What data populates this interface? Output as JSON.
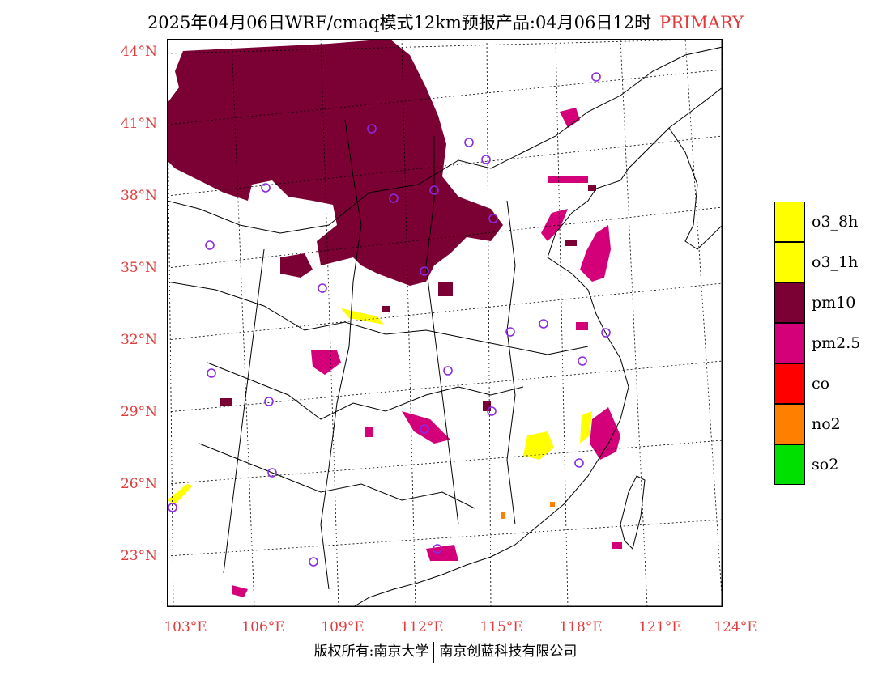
{
  "header": {
    "title": "2025年04月06日WRF/cmaq模式12km预报产品:04月06日12时",
    "badge": "PRIMARY"
  },
  "map": {
    "lat_labels": [
      "44°N",
      "41°N",
      "38°N",
      "35°N",
      "32°N",
      "29°N",
      "26°N",
      "23°N"
    ],
    "lon_labels": [
      "103°E",
      "106°E",
      "109°E",
      "112°E",
      "115°E",
      "118°E",
      "121°E",
      "124°E"
    ],
    "extent": {
      "lon": [
        103,
        124
      ],
      "lat": [
        21,
        44.5
      ]
    },
    "colors": {
      "pm10": "#7b0033",
      "pm2_5": "#d4007a",
      "o3": "#ffff00",
      "no2": "#ff7f00",
      "station": "#8a2be2"
    }
  },
  "legend": {
    "items": [
      {
        "label": "o3_8h",
        "color": "#ffff00"
      },
      {
        "label": "o3_1h",
        "color": "#ffff00"
      },
      {
        "label": "pm10",
        "color": "#7b0033"
      },
      {
        "label": "pm2.5",
        "color": "#d4007a"
      },
      {
        "label": "co",
        "color": "#ff0000"
      },
      {
        "label": "no2",
        "color": "#ff7f00"
      },
      {
        "label": "so2",
        "color": "#00e000"
      }
    ]
  },
  "footer": {
    "left": "版权所有:南京大学",
    "right": "南京创蓝科技有限公司"
  }
}
